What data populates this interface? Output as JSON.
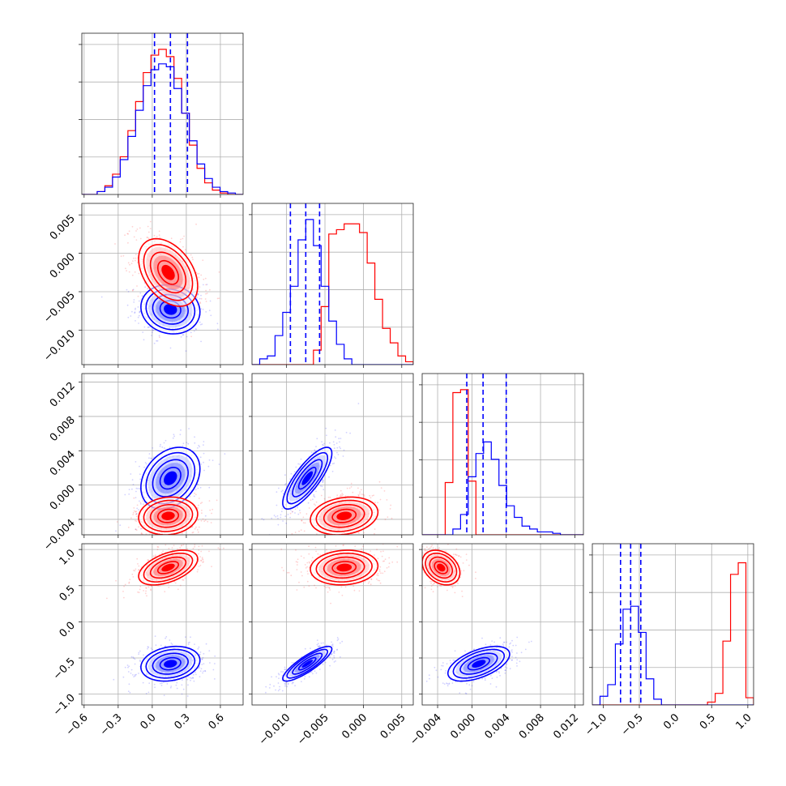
{
  "chart_data": {
    "type": "corner",
    "title": "",
    "grid": true,
    "series": [
      {
        "name": "",
        "color": "#0000ff"
      },
      {
        "name": "",
        "color": "#ff0000"
      }
    ],
    "quantile_line_color": "#0000ff",
    "params": [
      {
        "range": [
          -0.62,
          0.8
        ],
        "ticks": [
          -0.6,
          -0.3,
          0.0,
          0.3,
          0.6
        ],
        "tick_labels": [
          "−0.6",
          "−0.3",
          "0.0",
          "0.3",
          "0.6"
        ],
        "row_ticks": [],
        "row_tick_labels": [],
        "quantiles_blue": [
          0.02,
          0.16,
          0.31
        ],
        "hist_red": [
          0,
          0,
          0.02,
          0.06,
          0.14,
          0.26,
          0.44,
          0.64,
          0.84,
          0.96,
          1.0,
          0.95,
          0.8,
          0.56,
          0.34,
          0.18,
          0.08,
          0.03,
          0.01,
          0,
          0
        ],
        "hist_blue": [
          0,
          0,
          0.02,
          0.05,
          0.12,
          0.24,
          0.4,
          0.58,
          0.75,
          0.86,
          0.9,
          0.88,
          0.73,
          0.56,
          0.37,
          0.21,
          0.11,
          0.05,
          0.02,
          0.01,
          0
        ],
        "blue_mean": 0.16,
        "blue_sd": 0.13,
        "red_mean": 0.14,
        "red_sd": 0.13
      },
      {
        "range": [
          -0.0145,
          0.0065
        ],
        "ticks": [
          -0.01,
          -0.005,
          0.0,
          0.005
        ],
        "tick_labels": [
          "−0.010",
          "−0.005",
          "0.000",
          "0.005"
        ],
        "row_ticks": [
          -0.01,
          -0.005,
          0.0,
          0.005
        ],
        "row_tick_labels": [
          "−0.010",
          "−0.005",
          "0.000",
          "0.005"
        ],
        "quantiles_blue": [
          -0.0095,
          -0.0075,
          -0.0057
        ],
        "hist_red": [
          0,
          0,
          0,
          0,
          0,
          0,
          0,
          0,
          0.1,
          0.4,
          0.9,
          0.93,
          0.97,
          0.97,
          0.91,
          0.7,
          0.45,
          0.25,
          0.15,
          0.06,
          0.02
        ],
        "hist_blue": [
          0,
          0.04,
          0.06,
          0.2,
          0.36,
          0.54,
          0.86,
          1.0,
          0.82,
          0.54,
          0.3,
          0.14,
          0.04,
          0,
          0,
          0,
          0,
          0,
          0,
          0,
          0
        ],
        "blue_mean": -0.0073,
        "blue_sd": 0.0016,
        "red_mean": -0.0025,
        "red_sd": 0.0022
      },
      {
        "range": [
          -0.0058,
          0.013
        ],
        "ticks": [
          -0.004,
          0.0,
          0.004,
          0.008,
          0.012
        ],
        "tick_labels": [
          "−0.004",
          "0.000",
          "0.004",
          "0.008",
          "0.012"
        ],
        "row_ticks": [
          -0.004,
          0.0,
          0.004,
          0.008,
          0.012
        ],
        "row_tick_labels": [
          "−0.004",
          "0.000",
          "0.004",
          "0.008",
          "0.012"
        ],
        "quantiles_blue": [
          -0.0006,
          0.0013,
          0.004
        ],
        "hist_red": [
          0,
          0,
          0,
          0.36,
          0.98,
          1.0,
          0.37,
          0,
          0,
          0,
          0,
          0,
          0,
          0,
          0,
          0,
          0,
          0,
          0,
          0,
          0
        ],
        "hist_blue": [
          0,
          0,
          0,
          0,
          0.04,
          0.14,
          0.4,
          0.56,
          0.64,
          0.52,
          0.34,
          0.2,
          0.12,
          0.06,
          0.04,
          0.02,
          0.02,
          0.01,
          0,
          0,
          0
        ],
        "blue_mean": 0.0008,
        "blue_sd": 0.0018,
        "red_mean": -0.0036,
        "red_sd": 0.0011
      },
      {
        "range": [
          -1.15,
          1.08
        ],
        "ticks": [
          -1.0,
          -0.5,
          0.0,
          0.5,
          1.0
        ],
        "tick_labels": [
          "−1.0",
          "−0.5",
          "0.0",
          "0.5",
          "1.0"
        ],
        "row_ticks": [
          -1.0,
          -0.5,
          0.0,
          0.5,
          1.0
        ],
        "row_tick_labels": [
          "−1.0",
          "−0.5",
          "0.0",
          "0.5",
          "1.0"
        ],
        "quantiles_blue": [
          -0.76,
          -0.62,
          -0.48
        ],
        "hist_red": [
          0,
          0,
          0,
          0,
          0,
          0,
          0,
          0,
          0,
          0,
          0,
          0,
          0,
          0,
          0,
          0.02,
          0.08,
          0.44,
          0.9,
          0.98,
          0.05
        ],
        "hist_blue": [
          0,
          0.06,
          0.14,
          0.42,
          0.66,
          0.68,
          0.5,
          0.18,
          0.04,
          0,
          0,
          0,
          0,
          0,
          0,
          0,
          0,
          0,
          0,
          0,
          0
        ],
        "blue_mean": -0.58,
        "blue_sd": 0.12,
        "red_mean": 0.75,
        "red_sd": 0.12
      }
    ],
    "pairs_blue_rho": {
      "1-0": -0.1,
      "2-0": 0.3,
      "2-1": 0.8,
      "3-0": 0.2,
      "3-1": 0.85,
      "3-2": 0.55
    },
    "pairs_red_rho": {
      "1-0": -0.4,
      "2-0": 0.1,
      "2-1": 0.2,
      "3-0": 0.5,
      "3-1": 0.1,
      "3-2": -0.3
    }
  }
}
